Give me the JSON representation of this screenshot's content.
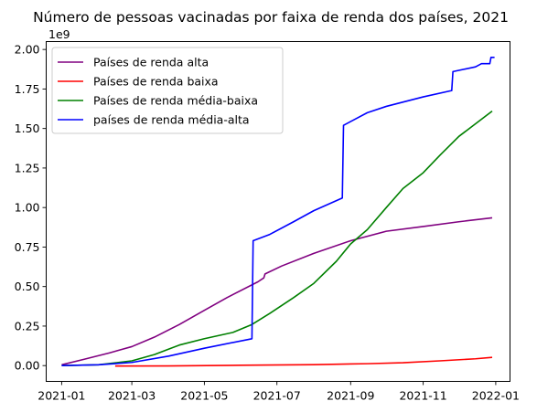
{
  "chart_data": {
    "type": "line",
    "title": "Número de pessoas vacinadas por faixa de renda dos países, 2021",
    "xlabel": "",
    "ylabel": "",
    "y_offset_label": "1e9",
    "x_tick_labels": [
      "2021-01",
      "2021-03",
      "2021-05",
      "2021-07",
      "2021-09",
      "2021-11",
      "2022-01"
    ],
    "y_tick_labels": [
      "0.00",
      "0.25",
      "0.50",
      "0.75",
      "1.00",
      "1.25",
      "1.50",
      "1.75",
      "2.00"
    ],
    "ylim": [
      -0.1,
      2.05
    ],
    "xlim": [
      "2020-12-19",
      "2022-01-13"
    ],
    "grid": false,
    "legend_position": "top-left",
    "series": [
      {
        "name": "Países de renda alta",
        "color": "#800080",
        "points": [
          [
            "2021-01-01",
            0.005
          ],
          [
            "2021-01-20",
            0.04
          ],
          [
            "2021-02-10",
            0.08
          ],
          [
            "2021-03-01",
            0.12
          ],
          [
            "2021-03-20",
            0.18
          ],
          [
            "2021-04-10",
            0.26
          ],
          [
            "2021-05-01",
            0.35
          ],
          [
            "2021-05-20",
            0.43
          ],
          [
            "2021-06-15",
            0.53
          ],
          [
            "2021-06-20",
            0.555
          ],
          [
            "2021-06-21",
            0.58
          ],
          [
            "2021-07-05",
            0.63
          ],
          [
            "2021-08-01",
            0.71
          ],
          [
            "2021-09-01",
            0.79
          ],
          [
            "2021-10-01",
            0.85
          ],
          [
            "2021-11-01",
            0.88
          ],
          [
            "2021-12-01",
            0.91
          ],
          [
            "2021-12-29",
            0.935
          ]
        ]
      },
      {
        "name": "Países de renda baixa",
        "color": "#ff0000",
        "points": [
          [
            "2021-02-15",
            -0.003
          ],
          [
            "2021-04-01",
            -0.002
          ],
          [
            "2021-06-01",
            0.002
          ],
          [
            "2021-08-01",
            0.006
          ],
          [
            "2021-09-15",
            0.012
          ],
          [
            "2021-10-15",
            0.018
          ],
          [
            "2021-11-15",
            0.03
          ],
          [
            "2021-12-15",
            0.043
          ],
          [
            "2021-12-29",
            0.052
          ]
        ]
      },
      {
        "name": "Países de renda média-baixa",
        "color": "#008000",
        "points": [
          [
            "2021-01-01",
            0.0
          ],
          [
            "2021-02-01",
            0.005
          ],
          [
            "2021-03-01",
            0.03
          ],
          [
            "2021-03-20",
            0.07
          ],
          [
            "2021-04-10",
            0.13
          ],
          [
            "2021-05-01",
            0.17
          ],
          [
            "2021-05-25",
            0.21
          ],
          [
            "2021-06-10",
            0.26
          ],
          [
            "2021-06-25",
            0.33
          ],
          [
            "2021-07-15",
            0.43
          ],
          [
            "2021-08-01",
            0.52
          ],
          [
            "2021-08-20",
            0.66
          ],
          [
            "2021-09-01",
            0.77
          ],
          [
            "2021-09-15",
            0.86
          ],
          [
            "2021-10-01",
            1.0
          ],
          [
            "2021-10-15",
            1.12
          ],
          [
            "2021-11-01",
            1.22
          ],
          [
            "2021-11-15",
            1.33
          ],
          [
            "2021-12-01",
            1.45
          ],
          [
            "2021-12-15",
            1.53
          ],
          [
            "2021-12-29",
            1.61
          ]
        ]
      },
      {
        "name": "países de renda média-alta",
        "color": "#0000ff",
        "points": [
          [
            "2021-01-01",
            0.0
          ],
          [
            "2021-02-01",
            0.005
          ],
          [
            "2021-03-01",
            0.02
          ],
          [
            "2021-04-01",
            0.06
          ],
          [
            "2021-05-01",
            0.11
          ],
          [
            "2021-06-10",
            0.17
          ],
          [
            "2021-06-11",
            0.79
          ],
          [
            "2021-06-25",
            0.83
          ],
          [
            "2021-07-15",
            0.91
          ],
          [
            "2021-08-01",
            0.98
          ],
          [
            "2021-08-25",
            1.06
          ],
          [
            "2021-08-26",
            1.52
          ],
          [
            "2021-09-15",
            1.6
          ],
          [
            "2021-10-01",
            1.64
          ],
          [
            "2021-11-01",
            1.7
          ],
          [
            "2021-11-25",
            1.74
          ],
          [
            "2021-11-26",
            1.86
          ],
          [
            "2021-12-15",
            1.89
          ],
          [
            "2021-12-20",
            1.91
          ],
          [
            "2021-12-27",
            1.91
          ],
          [
            "2021-12-28",
            1.95
          ],
          [
            "2021-12-31",
            1.95
          ]
        ]
      }
    ]
  }
}
